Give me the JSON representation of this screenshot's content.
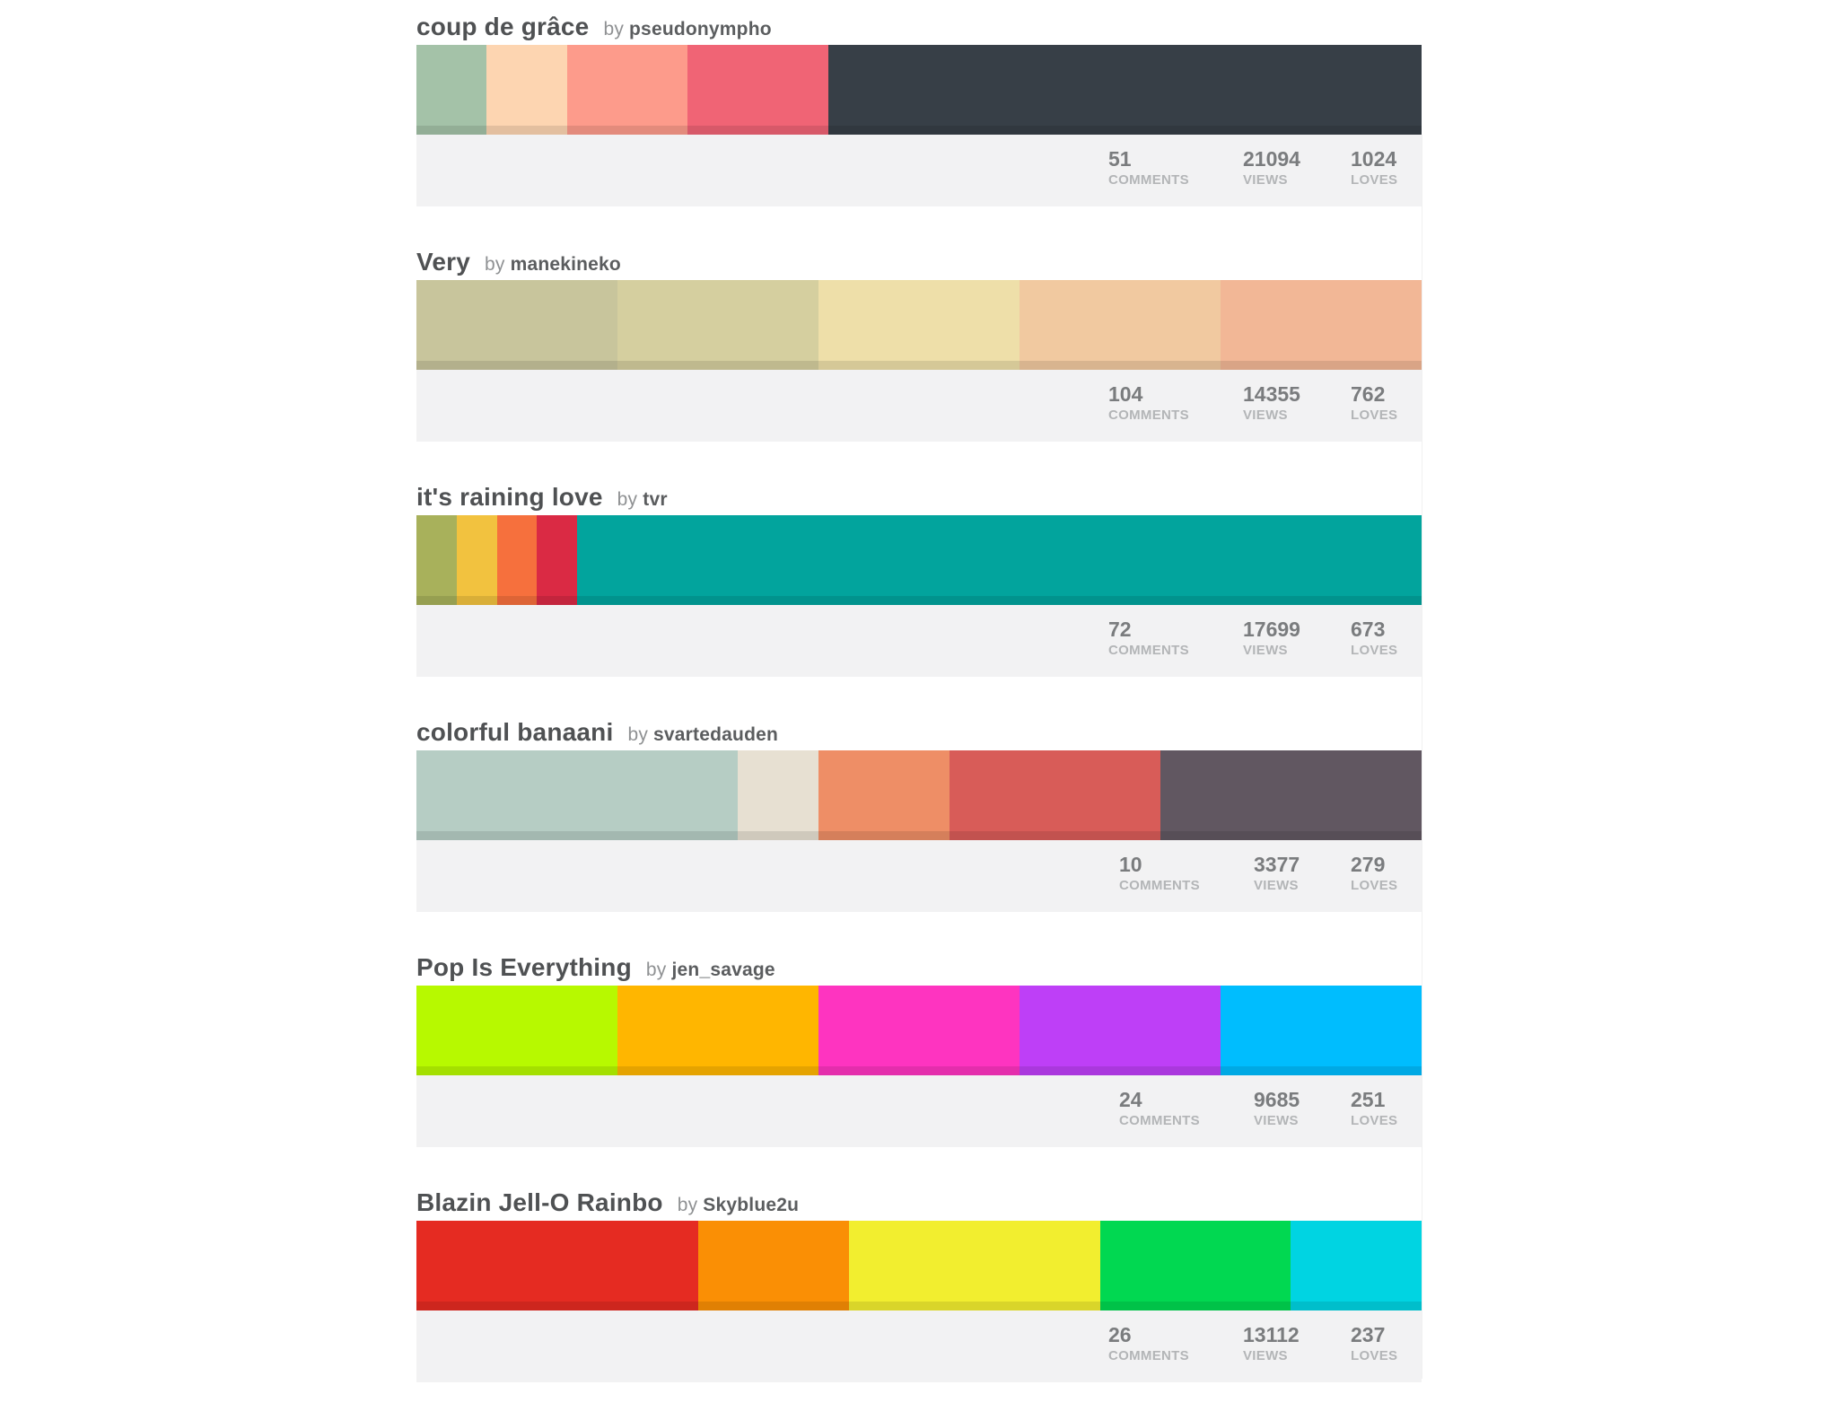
{
  "stat_labels": {
    "comments": "COMMENTS",
    "views": "VIEWS",
    "loves": "LOVES"
  },
  "palettes": [
    {
      "title": "coup de grâce",
      "by": "by",
      "author": "pseudonympho",
      "comments": "51",
      "views": "21094",
      "loves": "1024",
      "colors": [
        "#a4c2a8",
        "#fdd5b1",
        "#fd9b8b",
        "#f06475",
        "#373f47"
      ],
      "widths": [
        7,
        8,
        12,
        14,
        59
      ]
    },
    {
      "title": "Very",
      "by": "by",
      "author": "manekineko",
      "comments": "104",
      "views": "14355",
      "loves": "762",
      "colors": [
        "#c8c59c",
        "#d5cf9f",
        "#eedfa9",
        "#f1c9a0",
        "#f2b796"
      ],
      "widths": [
        20,
        20,
        20,
        20,
        20
      ]
    },
    {
      "title": "it's raining love",
      "by": "by",
      "author": "tvr",
      "comments": "72",
      "views": "17699",
      "loves": "673",
      "colors": [
        "#a8b15b",
        "#f2c23f",
        "#f6703d",
        "#da2a44",
        "#02a49d"
      ],
      "widths": [
        4,
        4,
        4,
        4,
        84
      ]
    },
    {
      "title": "colorful banaani",
      "by": "by",
      "author": "svartedauden",
      "comments": "10",
      "views": "3377",
      "loves": "279",
      "colors": [
        "#b6cdc4",
        "#e7e0d2",
        "#ee8e66",
        "#d85c58",
        "#615761"
      ],
      "widths": [
        32,
        8,
        13,
        21,
        26
      ]
    },
    {
      "title": "Pop Is Everything",
      "by": "by",
      "author": "jen_savage",
      "comments": "24",
      "views": "9685",
      "loves": "251",
      "colors": [
        "#b7f900",
        "#ffb600",
        "#fe34c0",
        "#be3ff7",
        "#00bdfe"
      ],
      "widths": [
        20,
        20,
        20,
        20,
        20
      ]
    },
    {
      "title": "Blazin Jell-O Rainbo",
      "by": "by",
      "author": "Skyblue2u",
      "comments": "26",
      "views": "13112",
      "loves": "237",
      "colors": [
        "#e52b22",
        "#fa8f05",
        "#f2ee2f",
        "#01d851",
        "#00d4e2"
      ],
      "widths": [
        28,
        15,
        25,
        19,
        13
      ]
    }
  ]
}
